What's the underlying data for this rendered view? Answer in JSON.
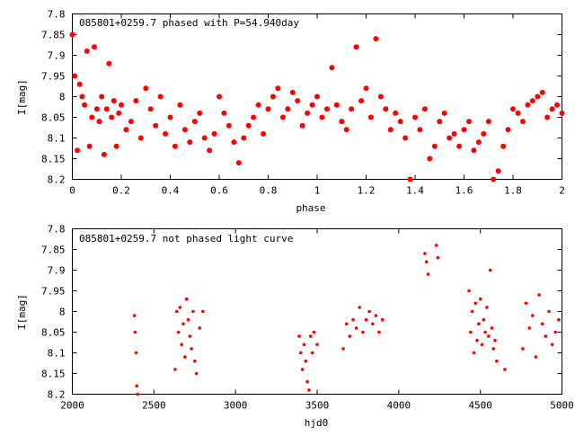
{
  "chart_data": [
    {
      "type": "scatter",
      "title": "085801+0259.7 phased with P=54.940day",
      "xlabel": "phase",
      "ylabel": "I[mag]",
      "xlim": [
        0,
        2
      ],
      "ylim": [
        7.8,
        8.2
      ],
      "y_inverted": true,
      "x_ticks": [
        "0",
        "0.2",
        "0.4",
        "0.6",
        "0.8",
        "1",
        "1.2",
        "1.4",
        "1.6",
        "1.8",
        "2"
      ],
      "y_ticks": [
        "7.8",
        "7.85",
        "7.9",
        "7.95",
        "8",
        "8.05",
        "8.1",
        "8.15",
        "8.2"
      ],
      "grid": false,
      "marker": "filled-circle",
      "color": "#ff0000",
      "series": [
        {
          "x": [
            0.0,
            0.01,
            0.02,
            0.03,
            0.04,
            0.05,
            0.06,
            0.07,
            0.08,
            0.09,
            0.1,
            0.11,
            0.12,
            0.13,
            0.14,
            0.15,
            0.16,
            0.17,
            0.18,
            0.19,
            0.2,
            0.22,
            0.24,
            0.26,
            0.28,
            0.3,
            0.32,
            0.34,
            0.36,
            0.38,
            0.4,
            0.42,
            0.44,
            0.46,
            0.48,
            0.5,
            0.52,
            0.54,
            0.56,
            0.58,
            0.6,
            0.62,
            0.64,
            0.66,
            0.68,
            0.7,
            0.72,
            0.74,
            0.76,
            0.78,
            0.8,
            0.82,
            0.84,
            0.86,
            0.88,
            0.9,
            0.92,
            0.94,
            0.96,
            0.98,
            1.0,
            1.02,
            1.04,
            1.06,
            1.08,
            1.1,
            1.12,
            1.14,
            1.16,
            1.18,
            1.2,
            1.22,
            1.24,
            1.26,
            1.28,
            1.3,
            1.32,
            1.34,
            1.36,
            1.38,
            1.4,
            1.42,
            1.44,
            1.46,
            1.48,
            1.5,
            1.52,
            1.54,
            1.56,
            1.58,
            1.6,
            1.62,
            1.64,
            1.66,
            1.68,
            1.7,
            1.72,
            1.74,
            1.76,
            1.78,
            1.8,
            1.82,
            1.84,
            1.86,
            1.88,
            1.9,
            1.92,
            1.94,
            1.96,
            1.98,
            2.0
          ],
          "y": [
            7.85,
            7.95,
            8.13,
            7.97,
            8.0,
            8.02,
            7.89,
            8.12,
            8.05,
            7.88,
            8.03,
            8.06,
            8.0,
            8.14,
            8.03,
            7.92,
            8.05,
            8.01,
            8.12,
            8.04,
            8.02,
            8.08,
            8.06,
            8.01,
            8.1,
            7.98,
            8.03,
            8.07,
            8.0,
            8.09,
            8.05,
            8.12,
            8.02,
            8.08,
            8.11,
            8.06,
            8.04,
            8.1,
            8.13,
            8.09,
            8.0,
            8.04,
            8.07,
            8.11,
            8.16,
            8.1,
            8.07,
            8.05,
            8.02,
            8.09,
            8.03,
            8.0,
            7.98,
            8.05,
            8.03,
            7.99,
            8.01,
            8.07,
            8.04,
            8.02,
            8.0,
            8.05,
            8.03,
            7.93,
            8.02,
            8.06,
            8.08,
            8.03,
            7.88,
            8.01,
            7.98,
            8.05,
            7.86,
            8.0,
            8.03,
            8.08,
            8.04,
            8.06,
            8.1,
            8.2,
            8.05,
            8.08,
            8.03,
            8.15,
            8.12,
            8.06,
            8.04,
            8.1,
            8.09,
            8.12,
            8.08,
            8.06,
            8.13,
            8.11,
            8.09,
            8.06,
            8.2,
            8.18,
            8.12,
            8.08,
            8.03,
            8.04,
            8.06,
            8.02,
            8.01,
            8.0,
            7.99,
            8.05,
            8.03,
            8.02,
            8.04
          ]
        }
      ]
    },
    {
      "type": "scatter",
      "title": "085801+0259.7 not phased light curve",
      "xlabel": "hjd0",
      "ylabel": "I[mag]",
      "xlim": [
        2000,
        5000
      ],
      "ylim": [
        7.8,
        8.2
      ],
      "y_inverted": true,
      "x_ticks": [
        "2000",
        "2500",
        "3000",
        "3500",
        "4000",
        "4500",
        "5000"
      ],
      "y_ticks": [
        "7.8",
        "7.85",
        "7.9",
        "7.95",
        "8",
        "8.05",
        "8.1",
        "8.15",
        "8.2"
      ],
      "grid": false,
      "marker": "small-circle",
      "color": "#ff0000",
      "series": [
        {
          "x": [
            2380,
            2385,
            2390,
            2395,
            2400,
            2630,
            2640,
            2650,
            2660,
            2670,
            2680,
            2690,
            2700,
            2710,
            2720,
            2730,
            2740,
            2750,
            2760,
            2780,
            2800,
            3390,
            3400,
            3410,
            3420,
            3430,
            3440,
            3450,
            3460,
            3470,
            3480,
            3500,
            3660,
            3680,
            3700,
            3720,
            3740,
            3760,
            3780,
            3800,
            3820,
            3840,
            3860,
            3880,
            3900,
            4160,
            4170,
            4180,
            4230,
            4240,
            4430,
            4440,
            4450,
            4460,
            4470,
            4480,
            4490,
            4500,
            4510,
            4520,
            4530,
            4540,
            4550,
            4560,
            4570,
            4580,
            4590,
            4600,
            4650,
            4760,
            4780,
            4800,
            4820,
            4840,
            4860,
            4880,
            4900,
            4920,
            4940,
            4960,
            4980
          ],
          "y": [
            8.01,
            8.05,
            8.1,
            8.18,
            8.2,
            8.14,
            8.0,
            8.05,
            7.99,
            8.08,
            8.03,
            8.11,
            7.97,
            8.02,
            8.06,
            8.09,
            8.0,
            8.12,
            8.15,
            8.04,
            8.0,
            8.06,
            8.1,
            8.14,
            8.08,
            8.12,
            8.17,
            8.19,
            8.06,
            8.1,
            8.05,
            8.08,
            8.09,
            8.03,
            8.06,
            8.02,
            8.04,
            7.99,
            8.05,
            8.02,
            8.0,
            8.03,
            8.01,
            8.05,
            8.02,
            7.86,
            7.88,
            7.91,
            7.84,
            7.87,
            7.95,
            8.05,
            8.0,
            8.1,
            7.98,
            8.07,
            8.03,
            7.97,
            8.08,
            8.02,
            8.05,
            7.99,
            8.06,
            7.9,
            8.04,
            8.09,
            8.07,
            8.12,
            8.14,
            8.09,
            7.98,
            8.04,
            8.01,
            8.11,
            7.96,
            8.03,
            8.06,
            8.0,
            8.08,
            8.05,
            8.02
          ]
        }
      ]
    }
  ]
}
